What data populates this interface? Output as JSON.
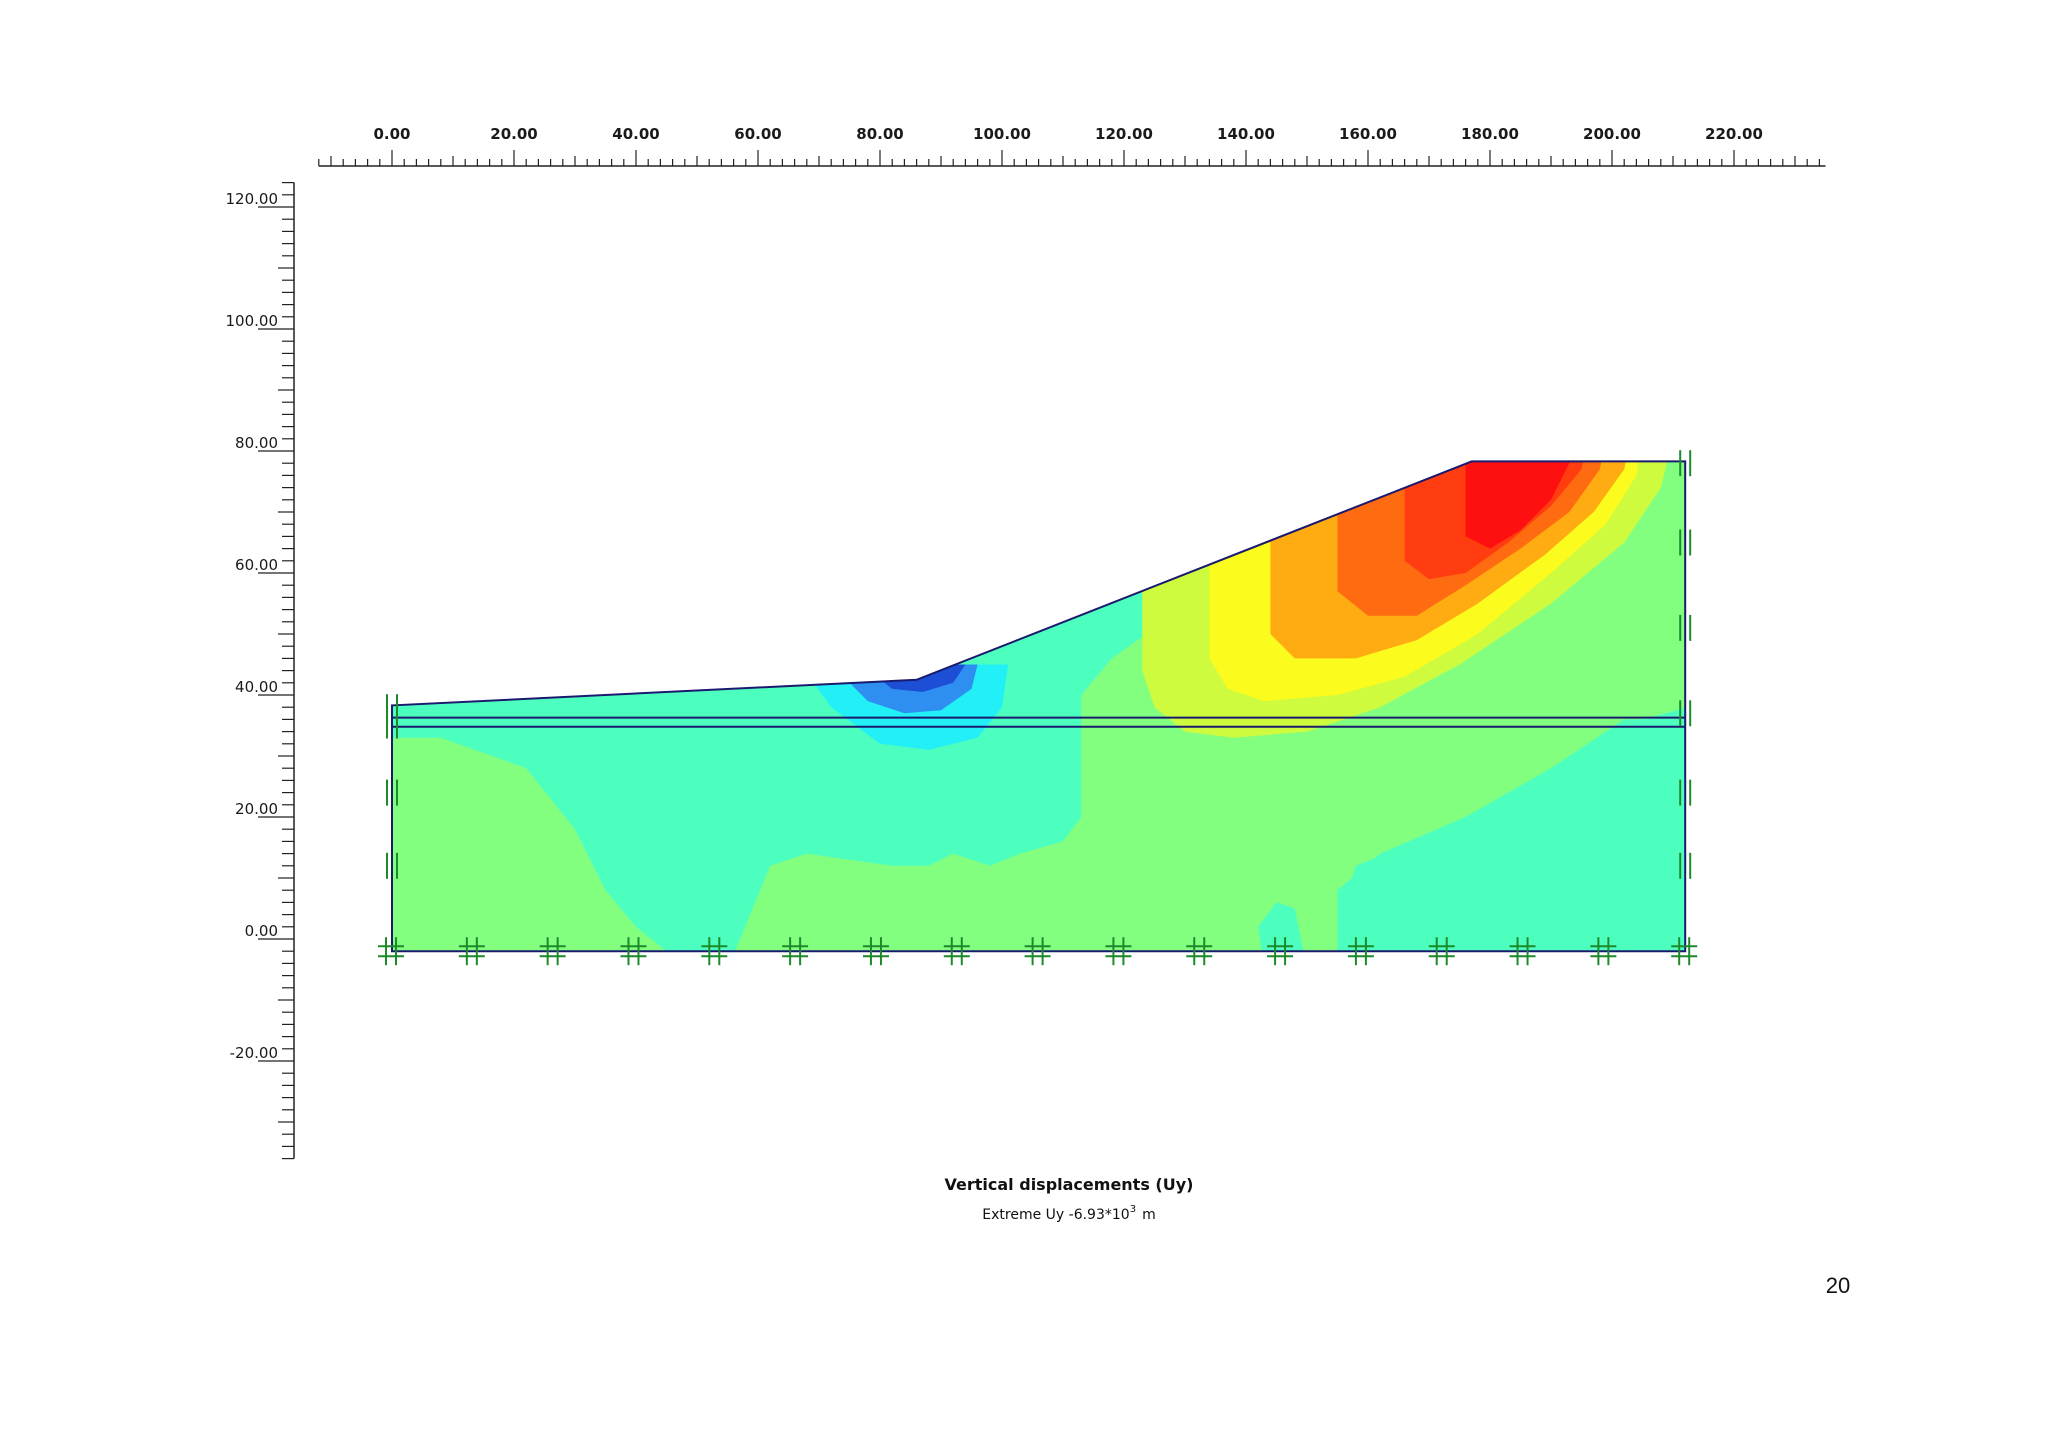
{
  "x_axis": {
    "ticks": [
      "0.00",
      "20.00",
      "40.00",
      "60.00",
      "80.00",
      "100.00",
      "120.00",
      "140.00",
      "160.00",
      "180.00",
      "200.00",
      "220.00"
    ],
    "min": -12,
    "max": 235,
    "major_step": 20,
    "minor_step": 2
  },
  "y_axis": {
    "ticks": [
      "120.00",
      "100.00",
      "80.00",
      "60.00",
      "40.00",
      "20.00",
      "0.00",
      "-20.00"
    ],
    "min": -36,
    "max": 124,
    "major_step": 20,
    "minor_step": 2
  },
  "model": {
    "boundary_points": [
      [
        0,
        -2
      ],
      [
        0,
        38.3
      ],
      [
        86,
        42.5
      ],
      [
        177,
        78.3
      ],
      [
        212,
        78.3
      ],
      [
        212,
        -2
      ]
    ],
    "layer_lines_y": [
      36.3,
      34.8
    ],
    "bottom_y": -2,
    "fixity_symbol_count": 17
  },
  "colors": {
    "dark_blue": "#1d4fd6",
    "blue": "#2e8ff0",
    "cyan": "#22f0f6",
    "aqua": "#4dffbf",
    "green": "#83ff80",
    "yellow_green": "#cffb3f",
    "yellow": "#fbfb1d",
    "orange": "#ffab12",
    "orange_red": "#ff6b10",
    "red_orange": "#ff3d10",
    "red": "#ff1010",
    "outline": "#1a1a6e",
    "fixity": "#1d8a2a"
  },
  "caption": {
    "title": "Vertical displacements (Uy)",
    "extreme_prefix": "Extreme Uy -6.93*10",
    "extreme_exponent": "3",
    "extreme_unit": "m"
  },
  "page_number": "20"
}
